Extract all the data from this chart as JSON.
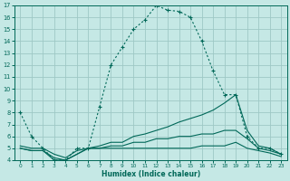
{
  "xlabel": "Humidex (Indice chaleur)",
  "bg_color": "#c5e8e5",
  "grid_color": "#9ec8c5",
  "line_color": "#006858",
  "xlim": [
    -0.5,
    23.5
  ],
  "ylim": [
    4,
    17
  ],
  "xticks": [
    0,
    1,
    2,
    3,
    4,
    5,
    6,
    7,
    8,
    9,
    10,
    11,
    12,
    13,
    14,
    15,
    16,
    17,
    18,
    19,
    20,
    21,
    22,
    23
  ],
  "yticks": [
    4,
    5,
    6,
    7,
    8,
    9,
    10,
    11,
    12,
    13,
    14,
    15,
    16,
    17
  ],
  "line_main_x": [
    0,
    1,
    2,
    3,
    4,
    5,
    6,
    7,
    8,
    9,
    10,
    11,
    12,
    13,
    14,
    15,
    16,
    17,
    18,
    19,
    20,
    21,
    22,
    23
  ],
  "line_main_y": [
    8,
    6,
    5,
    4,
    4,
    5,
    5,
    8.5,
    12,
    13.5,
    15,
    15.8,
    17,
    16.6,
    16.5,
    16,
    14,
    11.5,
    9.5,
    9.5,
    6,
    5,
    5,
    4.5
  ],
  "line2_x": [
    0,
    1,
    2,
    3,
    4,
    5,
    6,
    7,
    8,
    9,
    10,
    11,
    12,
    13,
    14,
    15,
    16,
    17,
    18,
    19,
    20,
    21,
    22,
    23
  ],
  "line2_y": [
    5.2,
    5.0,
    5.0,
    4.5,
    4.2,
    4.8,
    5.0,
    5.2,
    5.5,
    5.5,
    6.0,
    6.2,
    6.5,
    6.8,
    7.2,
    7.5,
    7.8,
    8.2,
    8.8,
    9.5,
    6.5,
    5.2,
    5.0,
    4.5
  ],
  "line3_x": [
    0,
    1,
    2,
    3,
    4,
    5,
    6,
    7,
    8,
    9,
    10,
    11,
    12,
    13,
    14,
    15,
    16,
    17,
    18,
    19,
    20,
    21,
    22,
    23
  ],
  "line3_y": [
    5.0,
    4.8,
    4.8,
    4.2,
    4.0,
    4.5,
    5.0,
    5.0,
    5.2,
    5.2,
    5.5,
    5.5,
    5.8,
    5.8,
    6.0,
    6.0,
    6.2,
    6.2,
    6.5,
    6.5,
    5.8,
    5.0,
    4.8,
    4.5
  ],
  "line4_x": [
    0,
    1,
    2,
    3,
    4,
    5,
    6,
    7,
    8,
    9,
    10,
    11,
    12,
    13,
    14,
    15,
    16,
    17,
    18,
    19,
    20,
    21,
    22,
    23
  ],
  "line4_y": [
    5.0,
    4.8,
    4.8,
    4.0,
    4.0,
    4.5,
    5.0,
    5.0,
    5.0,
    5.0,
    5.0,
    5.0,
    5.0,
    5.0,
    5.0,
    5.0,
    5.2,
    5.2,
    5.2,
    5.5,
    5.0,
    4.8,
    4.6,
    4.3
  ]
}
